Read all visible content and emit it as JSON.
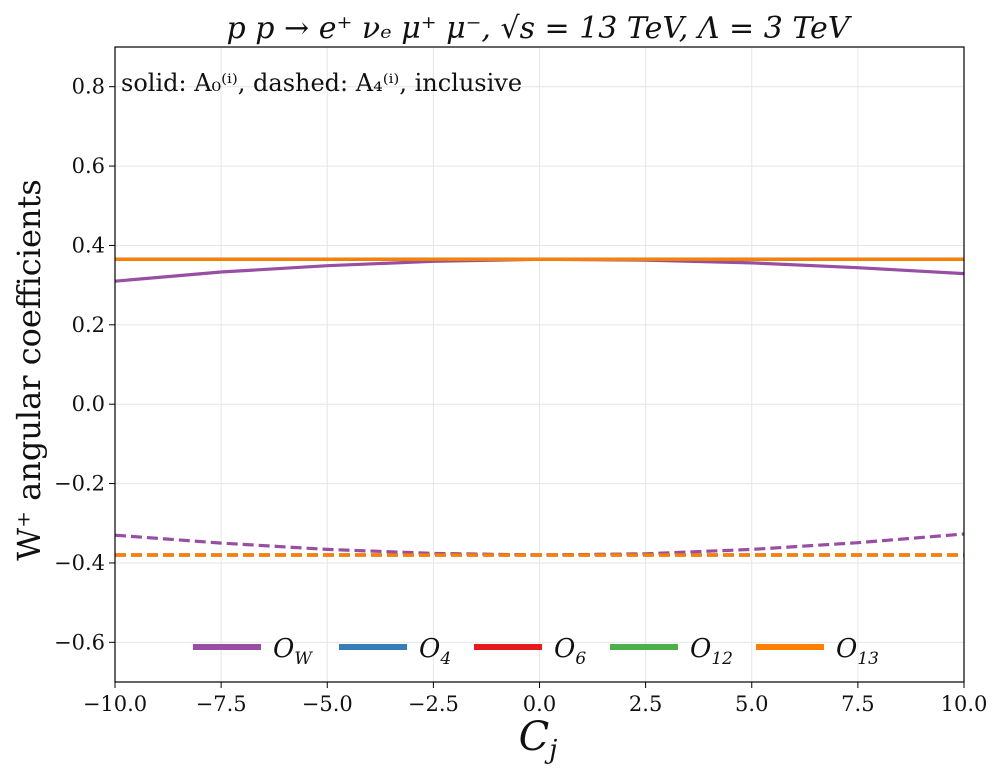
{
  "chart_data": {
    "type": "line",
    "title": "p p → e⁺ νₑ μ⁺ μ⁻, √s = 13 TeV, Λ = 3 TeV",
    "xlabel": "C_j",
    "xlabel_main": "C",
    "xlabel_sub": "j",
    "ylabel": "W⁺ angular coefficients",
    "annotation": "solid: A₀⁽ⁱ⁾, dashed: A₄⁽ⁱ⁾, inclusive",
    "xlim": [
      -10.0,
      10.0
    ],
    "ylim": [
      -0.7,
      0.9
    ],
    "xticks": [
      -10.0,
      -7.5,
      -5.0,
      -2.5,
      0.0,
      2.5,
      5.0,
      7.5,
      10.0
    ],
    "xtick_labels": [
      "−10.0",
      "−7.5",
      "−5.0",
      "−2.5",
      "0.0",
      "2.5",
      "5.0",
      "7.5",
      "10.0"
    ],
    "yticks": [
      -0.6,
      -0.4,
      -0.2,
      0.0,
      0.2,
      0.4,
      0.6,
      0.8
    ],
    "ytick_labels": [
      "−0.6",
      "−0.4",
      "−0.2",
      "0.0",
      "0.2",
      "0.4",
      "0.6",
      "0.8"
    ],
    "grid": true,
    "legend_position": "bottom-center",
    "x": [
      -10,
      -7.5,
      -5,
      -2.5,
      0,
      2.5,
      5,
      7.5,
      10
    ],
    "series": [
      {
        "name": "O_W",
        "legend_main": "O",
        "legend_sub": "W",
        "color": "#984ea3",
        "style": "solid",
        "values": [
          0.31,
          0.333,
          0.349,
          0.36,
          0.365,
          0.363,
          0.356,
          0.344,
          0.329
        ]
      },
      {
        "name": "O_4",
        "legend_main": "O",
        "legend_sub": "4",
        "color": "#377eb8",
        "style": "solid",
        "values": [
          0.365,
          0.365,
          0.365,
          0.365,
          0.365,
          0.365,
          0.365,
          0.365,
          0.365
        ]
      },
      {
        "name": "O_6",
        "legend_main": "O",
        "legend_sub": "6",
        "color": "#e41a1c",
        "style": "solid",
        "values": [
          0.365,
          0.365,
          0.365,
          0.365,
          0.365,
          0.365,
          0.365,
          0.365,
          0.365
        ]
      },
      {
        "name": "O_12",
        "legend_main": "O",
        "legend_sub": "12",
        "color": "#4daf4a",
        "style": "solid",
        "values": [
          0.365,
          0.365,
          0.365,
          0.365,
          0.365,
          0.365,
          0.365,
          0.365,
          0.365
        ]
      },
      {
        "name": "O_13",
        "legend_main": "O",
        "legend_sub": "13",
        "color": "#ff7f00",
        "style": "solid",
        "values": [
          0.365,
          0.365,
          0.365,
          0.365,
          0.365,
          0.365,
          0.365,
          0.365,
          0.365
        ]
      },
      {
        "name": "O_W",
        "color": "#984ea3",
        "style": "dashed",
        "values": [
          -0.33,
          -0.35,
          -0.366,
          -0.376,
          -0.38,
          -0.377,
          -0.366,
          -0.349,
          -0.327
        ]
      },
      {
        "name": "O_4",
        "color": "#377eb8",
        "style": "dashed",
        "values": [
          -0.38,
          -0.38,
          -0.38,
          -0.38,
          -0.38,
          -0.38,
          -0.38,
          -0.38,
          -0.38
        ]
      },
      {
        "name": "O_6",
        "color": "#e41a1c",
        "style": "dashed",
        "values": [
          -0.38,
          -0.38,
          -0.38,
          -0.38,
          -0.38,
          -0.38,
          -0.38,
          -0.38,
          -0.38
        ]
      },
      {
        "name": "O_12",
        "color": "#4daf4a",
        "style": "dashed",
        "values": [
          -0.38,
          -0.38,
          -0.38,
          -0.38,
          -0.38,
          -0.38,
          -0.38,
          -0.38,
          -0.38
        ]
      },
      {
        "name": "O_13",
        "color": "#ff7f00",
        "style": "dashed",
        "values": [
          -0.38,
          -0.38,
          -0.38,
          -0.38,
          -0.38,
          -0.38,
          -0.38,
          -0.38,
          -0.38
        ]
      }
    ]
  }
}
